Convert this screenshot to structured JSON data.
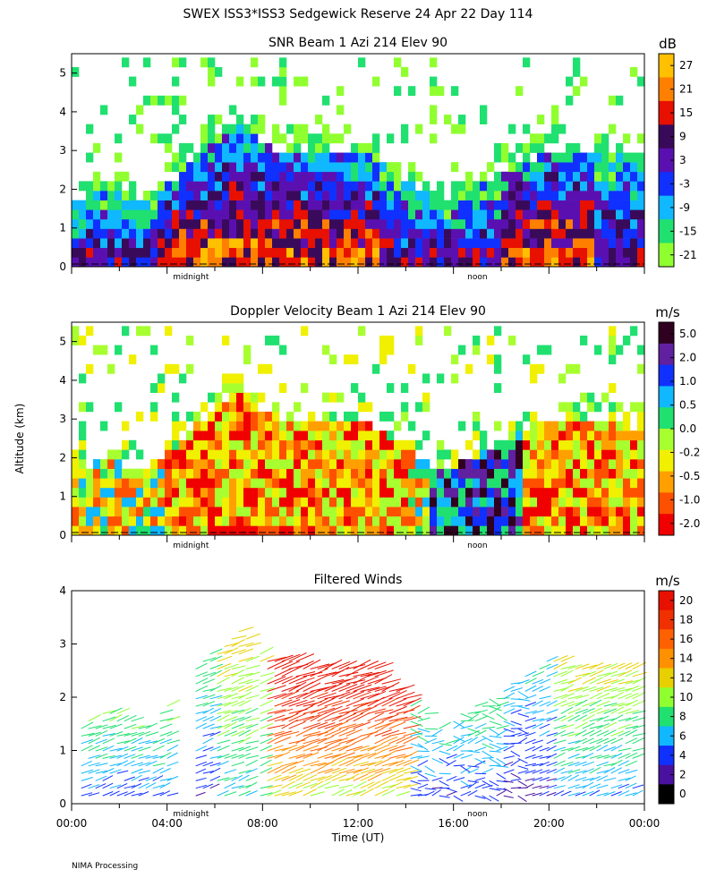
{
  "page": {
    "title": "SWEX ISS3*ISS3 Sedgewick Reserve  24 Apr 22 Day 114",
    "footer": "NIMA Processing",
    "ylabel": "Altitude (km)",
    "xlabel": "Time (UT)"
  },
  "chart_data": [
    {
      "type": "heatmap",
      "title": "SNR Beam 1 Azi 214 Elev 90",
      "ylim": [
        0,
        5.5
      ],
      "xlim": [
        0,
        24
      ],
      "yticks": [
        "0",
        "1",
        "2",
        "3",
        "4",
        "5"
      ],
      "day_markers": [
        "midnight",
        "noon"
      ],
      "colorbar": {
        "unit": "dB",
        "labels": [
          "27",
          "21",
          "15",
          "9",
          "3",
          "-3",
          "-9",
          "-15",
          "-21"
        ],
        "colors": [
          "#ffc000",
          "#ff8000",
          "#e81000",
          "#3a0a5a",
          "#5a10b0",
          "#1030ff",
          "#10b8ff",
          "#20e070",
          "#90ff30"
        ]
      }
    },
    {
      "type": "heatmap",
      "title": "Doppler Velocity Beam 1 Azi 214 Elev 90",
      "ylim": [
        0,
        5.5
      ],
      "xlim": [
        0,
        24
      ],
      "yticks": [
        "0",
        "1",
        "2",
        "3",
        "4",
        "5"
      ],
      "day_markers": [
        "midnight",
        "noon"
      ],
      "colorbar": {
        "unit": "m/s",
        "labels": [
          "5.0",
          "2.0",
          "1.0",
          "0.5",
          "0.0",
          "-0.2",
          "-0.5",
          "-1.0",
          "-2.0"
        ],
        "colors": [
          "#300020",
          "#6020a0",
          "#1030ff",
          "#10b8ff",
          "#20e070",
          "#a8ff30",
          "#f0f000",
          "#ffa000",
          "#ff5000",
          "#f00000"
        ]
      }
    },
    {
      "type": "scatter",
      "title": "Filtered Winds",
      "ylim": [
        0,
        4
      ],
      "xlim": [
        0,
        24
      ],
      "yticks": [
        "0",
        "1",
        "2",
        "3",
        "4"
      ],
      "xticks": [
        "00:00",
        "04:00",
        "08:00",
        "12:00",
        "16:00",
        "20:00",
        "00:00"
      ],
      "day_markers": [
        "midnight",
        "noon"
      ],
      "colorbar": {
        "unit": "m/s",
        "labels": [
          "20",
          "18",
          "16",
          "14",
          "12",
          "10",
          "8",
          "6",
          "4",
          "2",
          "0"
        ],
        "colors": [
          "#e81000",
          "#f03000",
          "#ff6000",
          "#ff9000",
          "#e8d000",
          "#90ff30",
          "#20e070",
          "#10b8ff",
          "#1030ff",
          "#4a10a0",
          "#000000"
        ]
      }
    }
  ]
}
